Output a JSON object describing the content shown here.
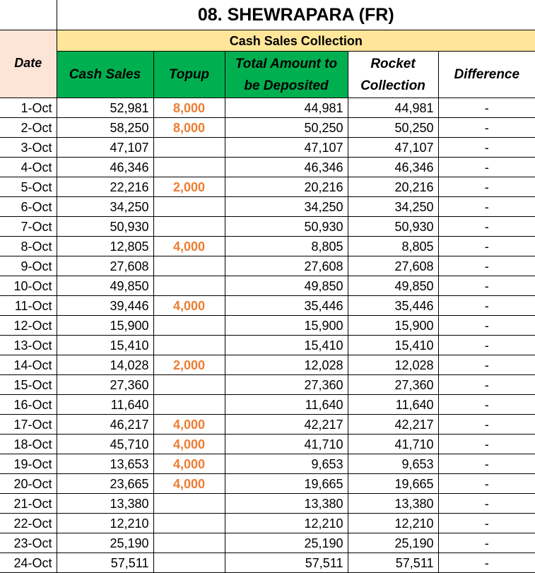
{
  "header": {
    "title": "08. SHEWRAPARA (FR)",
    "group": "Cash Sales Collection",
    "date_label": "Date"
  },
  "table": {
    "columns": [
      "Cash Sales",
      "Topup",
      "Total Amount to be Deposited",
      "Rocket Collection",
      "Difference"
    ],
    "rows": [
      [
        "1-Oct",
        "52,981",
        "8,000",
        "44,981",
        "44,981",
        "-"
      ],
      [
        "2-Oct",
        "58,250",
        "8,000",
        "50,250",
        "50,250",
        "-"
      ],
      [
        "3-Oct",
        "47,107",
        null,
        "47,107",
        "47,107",
        "-"
      ],
      [
        "4-Oct",
        "46,346",
        null,
        "46,346",
        "46,346",
        "-"
      ],
      [
        "5-Oct",
        "22,216",
        "2,000",
        "20,216",
        "20,216",
        "-"
      ],
      [
        "6-Oct",
        "34,250",
        null,
        "34,250",
        "34,250",
        "-"
      ],
      [
        "7-Oct",
        "50,930",
        null,
        "50,930",
        "50,930",
        "-"
      ],
      [
        "8-Oct",
        "12,805",
        "4,000",
        "8,805",
        "8,805",
        "-"
      ],
      [
        "9-Oct",
        "27,608",
        null,
        "27,608",
        "27,608",
        "-"
      ],
      [
        "10-Oct",
        "49,850",
        null,
        "49,850",
        "49,850",
        "-"
      ],
      [
        "11-Oct",
        "39,446",
        "4,000",
        "35,446",
        "35,446",
        "-"
      ],
      [
        "12-Oct",
        "15,900",
        null,
        "15,900",
        "15,900",
        "-"
      ],
      [
        "13-Oct",
        "15,410",
        null,
        "15,410",
        "15,410",
        "-"
      ],
      [
        "14-Oct",
        "14,028",
        "2,000",
        "12,028",
        "12,028",
        "-"
      ],
      [
        "15-Oct",
        "27,360",
        null,
        "27,360",
        "27,360",
        "-"
      ],
      [
        "16-Oct",
        "11,640",
        null,
        "11,640",
        "11,640",
        "-"
      ],
      [
        "17-Oct",
        "46,217",
        "4,000",
        "42,217",
        "42,217",
        "-"
      ],
      [
        "18-Oct",
        "45,710",
        "4,000",
        "41,710",
        "41,710",
        "-"
      ],
      [
        "19-Oct",
        "13,653",
        "4,000",
        "9,653",
        "9,653",
        "-"
      ],
      [
        "20-Oct",
        "23,665",
        "4,000",
        "19,665",
        "19,665",
        "-"
      ],
      [
        "21-Oct",
        "13,380",
        null,
        "13,380",
        "13,380",
        "-"
      ],
      [
        "22-Oct",
        "12,210",
        null,
        "12,210",
        "12,210",
        "-"
      ],
      [
        "23-Oct",
        "25,190",
        null,
        "25,190",
        "25,190",
        "-"
      ],
      [
        "24-Oct",
        "57,511",
        null,
        "57,511",
        "57,511",
        "-"
      ]
    ]
  }
}
